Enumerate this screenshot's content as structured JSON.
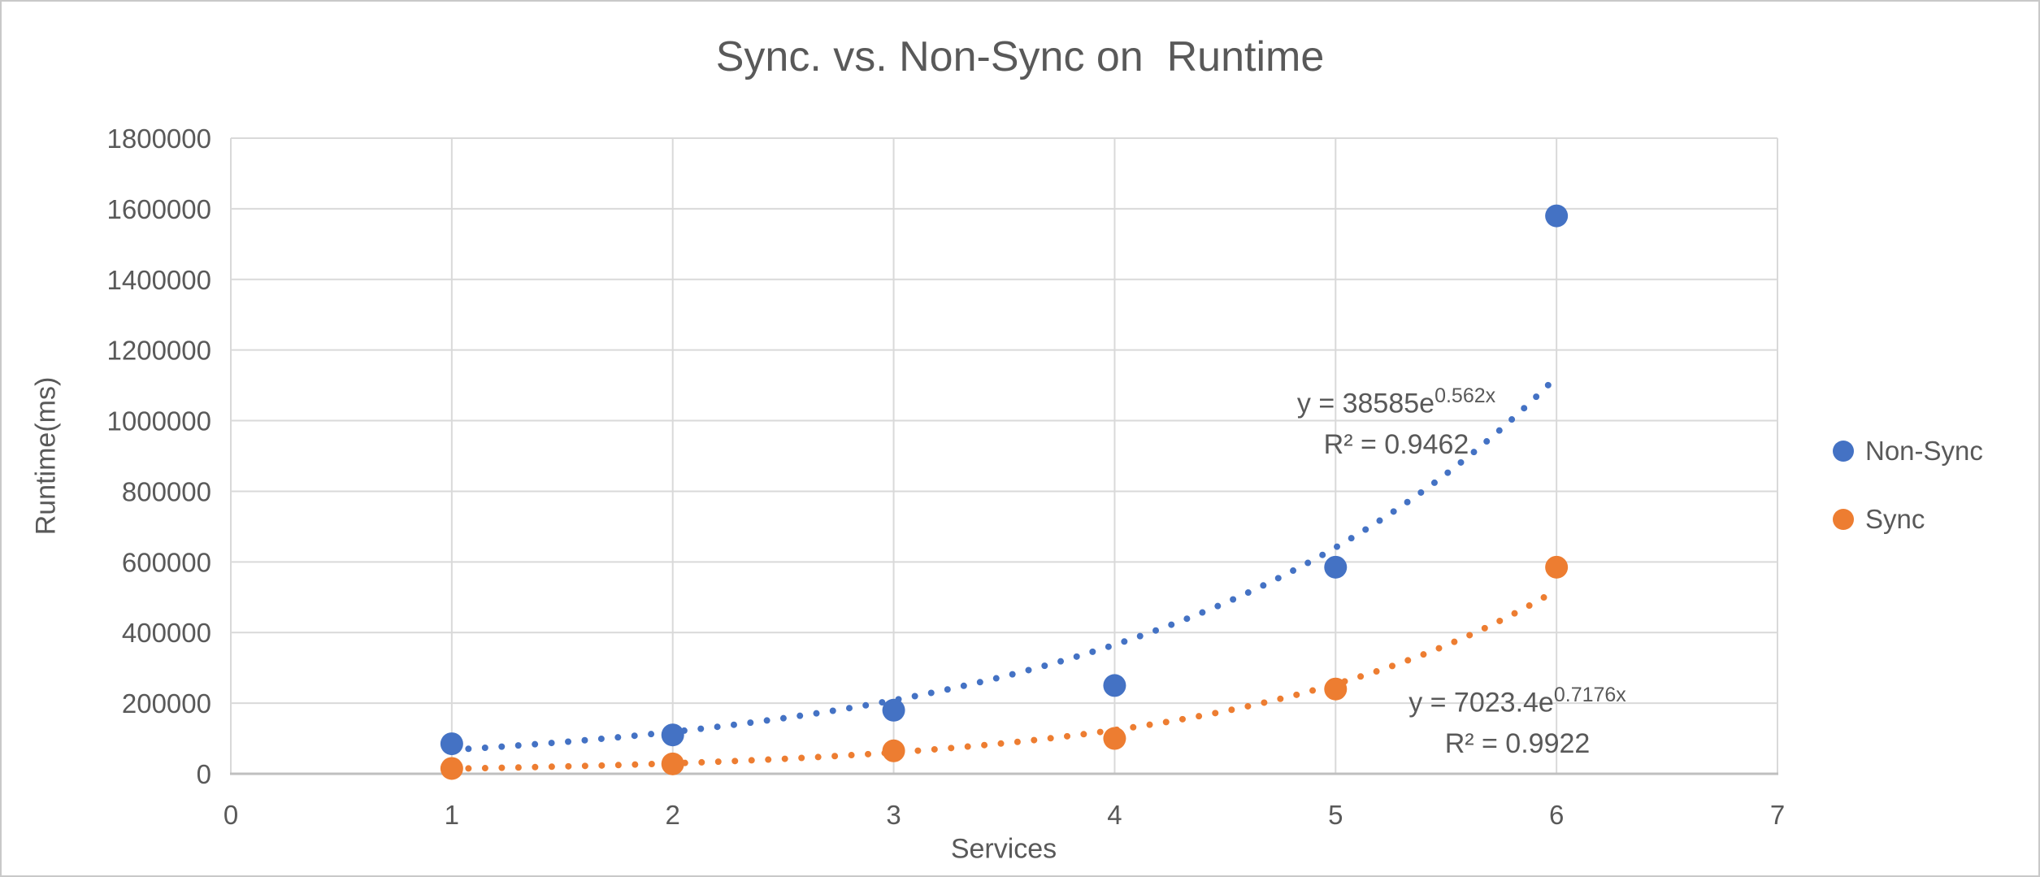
{
  "chart_data": {
    "type": "scatter",
    "title": "Sync. vs. Non-Sync on  Runtime",
    "xlabel": "Services",
    "ylabel": "Runtime(ms)",
    "xlim": [
      0,
      7
    ],
    "ylim": [
      0,
      1800000
    ],
    "x_ticks": [
      0,
      1,
      2,
      3,
      4,
      5,
      6,
      7
    ],
    "y_ticks": [
      0,
      200000,
      400000,
      600000,
      800000,
      1000000,
      1200000,
      1400000,
      1600000,
      1800000
    ],
    "grid": true,
    "legend_position": "right",
    "series": [
      {
        "name": "Non-Sync",
        "color": "#4472C4",
        "x": [
          1,
          2,
          3,
          4,
          5,
          6
        ],
        "y": [
          85000,
          110000,
          180000,
          250000,
          585000,
          1580000
        ],
        "trendline": {
          "type": "exponential",
          "a": 38585,
          "b": 0.562,
          "x_range": [
            1,
            6
          ],
          "equation_base": "y = 38585e",
          "equation_exponent": "0.562x",
          "r2_label": "R² = 0.9462"
        }
      },
      {
        "name": "Sync",
        "color": "#ED7D31",
        "x": [
          1,
          2,
          3,
          4,
          5,
          6
        ],
        "y": [
          15000,
          28000,
          65000,
          100000,
          240000,
          585000
        ],
        "trendline": {
          "type": "exponential",
          "a": 7023.4,
          "b": 0.7176,
          "x_range": [
            1,
            6
          ],
          "equation_base": "y = 7023.4e",
          "equation_exponent": "0.7176x",
          "r2_label": "R² = 0.9922"
        }
      }
    ],
    "colors": {
      "text": "#595959",
      "gridline": "#D9D9D9",
      "axis_line": "#BFBFBF",
      "background": "#FFFFFF"
    }
  }
}
